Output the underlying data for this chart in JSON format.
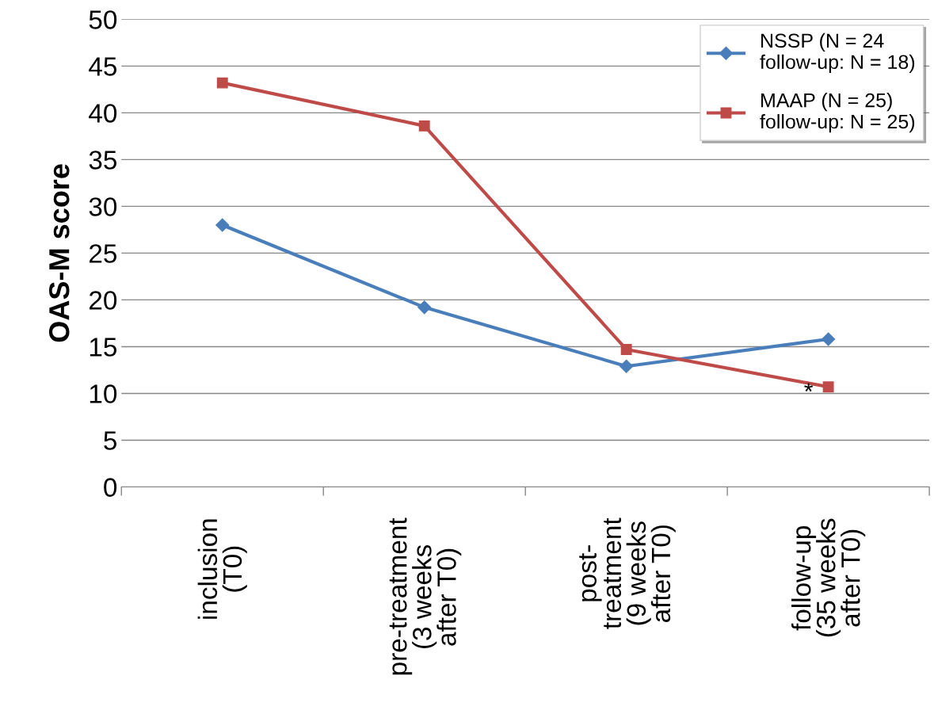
{
  "chart_data": {
    "type": "line",
    "ylabel": "OAS-M score",
    "categories": [
      "inclusion\n(T0)",
      "pre-treatment\n(3 weeks\nafter T0)",
      "post-\ntreatment\n(9 weeks\nafter T0)",
      "follow-up\n(35 weeks\nafter T0)"
    ],
    "series": [
      {
        "name": "NSSP (N = 24\nfollow-up: N = 18)",
        "color": "#4a7ebb",
        "marker": "diamond",
        "values": [
          28.0,
          19.2,
          12.9,
          15.8
        ]
      },
      {
        "name": "MAAP (N = 25)\nfollow-up: N = 25)",
        "color": "#be4b48",
        "marker": "square",
        "values": [
          43.2,
          38.6,
          14.7,
          10.7
        ]
      }
    ],
    "annotations": [
      {
        "text": "*",
        "x": "follow-up\n(35 weeks\nafter T0)",
        "y": 10.7
      }
    ],
    "ylim": [
      0,
      50
    ],
    "yticks": [
      0,
      5,
      10,
      15,
      20,
      25,
      30,
      35,
      40,
      45,
      50
    ],
    "grid": "y",
    "legend": "top right",
    "line_style": "solid"
  }
}
